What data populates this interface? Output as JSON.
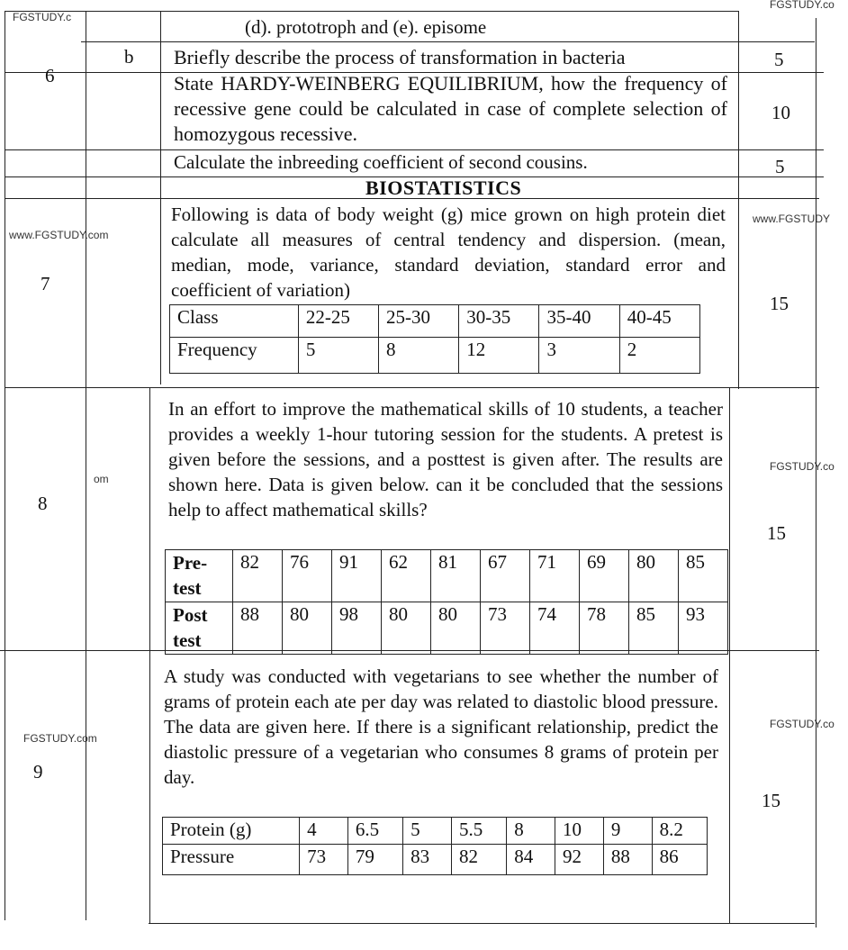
{
  "watermarks": [
    "FGSTUDY.co",
    "FGSTUDY.c",
    "www.FGSTUDY.com",
    "www.FGSTUDY",
    "FGSTUDY.co",
    "om",
    "FGSTUDY.co",
    "FGSTUDY.com"
  ],
  "rows": {
    "r1": {
      "text": "(d). prototroph and (e). episome"
    },
    "r2": {
      "part": "b",
      "text": "Briefly describe the process of transformation in bacteria",
      "marks": "5"
    },
    "r3": {
      "number": "6",
      "text": "State HARDY-WEINBERG EQUILIBRIUM, how the frequency of recessive gene could be calculated in case of complete selection of homozygous recessive.",
      "marks": "10"
    },
    "r4": {
      "text": "Calculate the inbreeding coefficient of second cousins.",
      "marks": "5"
    },
    "section": "BIOSTATISTICS",
    "q7": {
      "number": "7",
      "text": "Following is data of body weight (g) mice grown on high protein diet calculate all measures of central tendency and dispersion. (mean, median, mode, variance, standard deviation, standard error and coefficient of variation)",
      "marks": "15",
      "table": {
        "header": [
          "Class",
          "22-25",
          "25-30",
          "30-35",
          "35-40",
          "40-45"
        ],
        "row": [
          "Frequency",
          "5",
          "8",
          "12",
          "3",
          "2"
        ]
      }
    },
    "q8": {
      "number": "8",
      "text": "In an effort to improve the mathematical skills of 10 students, a teacher provides a weekly 1-hour tutoring session for the students. A pretest is given before the sessions, and a posttest is given after. The results are shown here. Data is given below. can it be concluded that the sessions help to affect mathematical skills?",
      "marks": "15",
      "table": {
        "pre": [
          "Pre-test",
          "82",
          "76",
          "91",
          "62",
          "81",
          "67",
          "71",
          "69",
          "80",
          "85"
        ],
        "post": [
          "Post test",
          "88",
          "80",
          "98",
          "80",
          "80",
          "73",
          "74",
          "78",
          "85",
          "93"
        ]
      }
    },
    "q9": {
      "number": "9",
      "text": "A study was conducted with vegetarians to see whether the number of grams of protein each ate per day was related to diastolic blood pressure. The data are given here. If there is a significant relationship, predict the diastolic pressure of a vegetarian who consumes 8 grams of protein per day.",
      "marks": "15",
      "table": {
        "protein": [
          "Protein (g)",
          "4",
          "6.5",
          "5",
          "5.5",
          "8",
          "10",
          "9",
          "8.2"
        ],
        "pressure": [
          "Pressure",
          "73",
          "79",
          "83",
          "82",
          "84",
          "92",
          "88",
          "86"
        ]
      }
    }
  }
}
